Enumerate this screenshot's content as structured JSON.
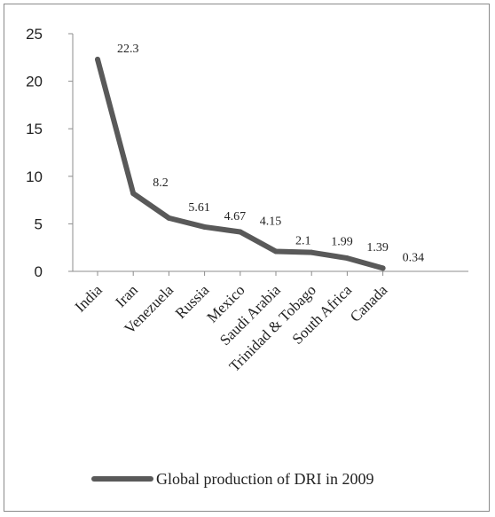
{
  "chart_data": {
    "type": "line",
    "categories": [
      "India",
      "Iran",
      "Venezuela",
      "Russia",
      "Mexico",
      "Saudi Arabia",
      "Trinidad & Tobago",
      "South Africa",
      "Canada"
    ],
    "series": [
      {
        "name": "Global production of DRI in 2009",
        "values": [
          22.3,
          8.2,
          5.61,
          4.67,
          4.15,
          2.1,
          1.99,
          1.39,
          0.34
        ],
        "labels": [
          "22.3",
          "8.2",
          "5.61",
          "4.67",
          "4.15",
          "2.1",
          "1.99",
          "1.39",
          "0.34"
        ]
      }
    ],
    "ylim": [
      0,
      25
    ],
    "yticks": [
      0,
      5,
      10,
      15,
      20,
      25
    ],
    "grid": false,
    "legend": "bottom",
    "color": "#595959"
  }
}
